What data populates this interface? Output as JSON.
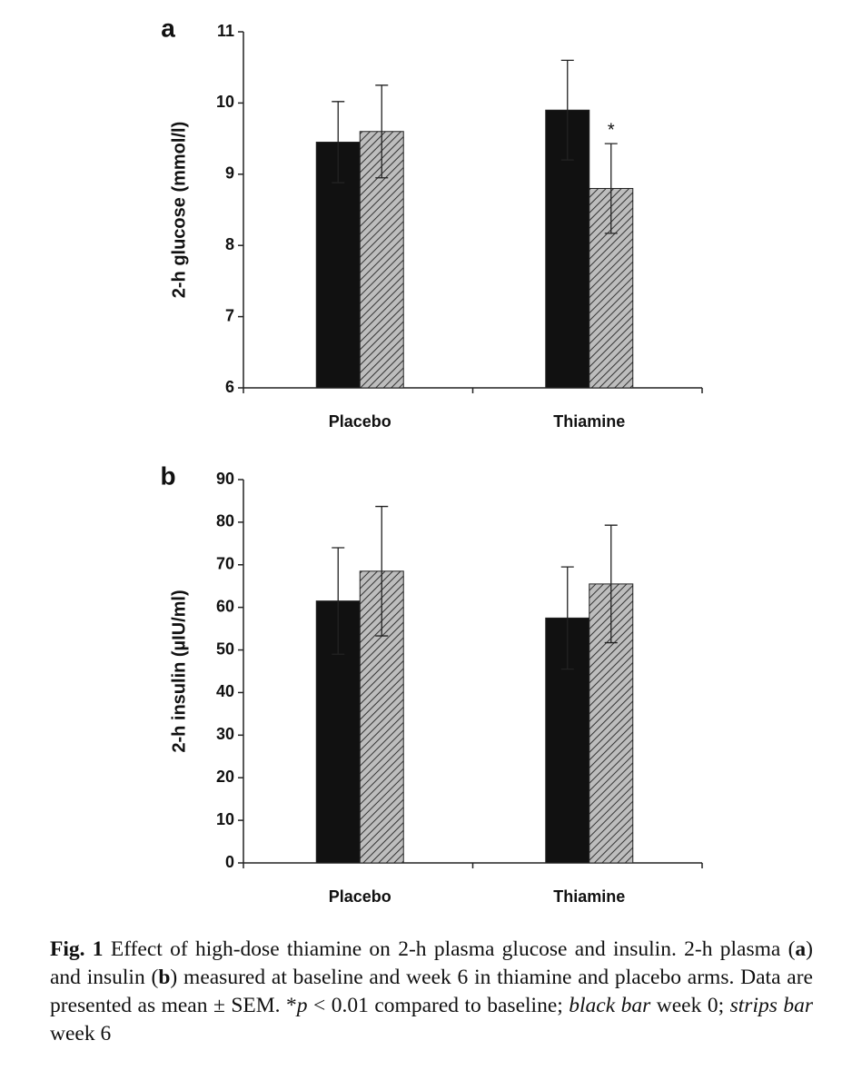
{
  "chart_data": [
    {
      "type": "bar",
      "panel": "a",
      "ylabel": "2-h glucose (mmol/l)",
      "categories": [
        "Placebo",
        "Thiamine"
      ],
      "series": [
        {
          "color": "#111111",
          "values": [
            9.45,
            9.9
          ],
          "errors": [
            0.57,
            0.7
          ]
        },
        {
          "color": "#bdbdbd",
          "pattern": "hatch",
          "values": [
            9.6,
            8.8
          ],
          "errors": [
            0.65,
            0.63
          ]
        }
      ],
      "annotations": [
        "*"
      ],
      "ylim": [
        6,
        11
      ],
      "yticks": [
        6,
        7,
        8,
        9,
        10,
        11
      ]
    },
    {
      "type": "bar",
      "panel": "b",
      "ylabel": "2-h  insulin (µIU/ml)",
      "categories": [
        "Placebo",
        "Thiamine"
      ],
      "series": [
        {
          "color": "#111111",
          "values": [
            61.5,
            57.5
          ],
          "errors": [
            12.5,
            12
          ]
        },
        {
          "color": "#bdbdbd",
          "pattern": "hatch",
          "values": [
            68.5,
            65.5
          ],
          "errors": [
            15.2,
            13.8
          ]
        }
      ],
      "ylim": [
        0,
        90
      ],
      "yticks": [
        0,
        10,
        20,
        30,
        40,
        50,
        60,
        70,
        80,
        90
      ]
    }
  ],
  "caption": [
    "Fig. 1",
    " Effect of high-dose thiamine on 2-h plasma glucose and insulin. 2-h plasma (",
    "a",
    ") and insulin (",
    "b",
    ") measured at baseline and week 6 in thiamine and placebo arms. Data are presented as mean ± SEM. *",
    "p",
    " < 0.01 compared to baseline; ",
    "black bar",
    " week 0; ",
    "strips bar",
    " week 6"
  ]
}
